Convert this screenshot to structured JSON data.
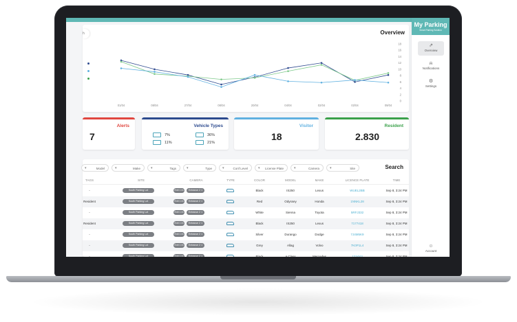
{
  "sidebar": {
    "logo": "My Parking",
    "logo_sub": "Smart Parking Solution",
    "items": [
      {
        "label": "Overview",
        "icon": "chart-icon"
      },
      {
        "label": "Notifications",
        "icon": "bell-icon"
      },
      {
        "label": "Settings",
        "icon": "gear-icon"
      }
    ],
    "account": "Account"
  },
  "overview": {
    "title": "Overview",
    "search_text": "h",
    "chart_data": {
      "type": "line",
      "categories": [
        "01/04",
        "08/04",
        "27/04",
        "08/04",
        "20/04",
        "04/04",
        "02/04",
        "02/04",
        "09/04"
      ],
      "ylim": [
        0,
        18
      ],
      "yticks": [
        18,
        16,
        14,
        12,
        10,
        8,
        6,
        4,
        2,
        0
      ],
      "series": [
        {
          "color": "#2e4a8f",
          "values": [
            12.8,
            10.0,
            8.2,
            5.2,
            7.5,
            10.4,
            12.0,
            6.0,
            8.2
          ]
        },
        {
          "color": "#7dc98a",
          "values": [
            12.4,
            8.5,
            7.8,
            6.8,
            7.3,
            9.4,
            11.4,
            6.5,
            8.8
          ]
        },
        {
          "color": "#5fb0e0",
          "values": [
            10.3,
            9.2,
            7.6,
            4.4,
            8.2,
            6.2,
            5.8,
            6.6,
            5.8
          ]
        }
      ],
      "grid": false,
      "legend": "left"
    }
  },
  "stats": {
    "alerts": {
      "label": "Alerts",
      "value": "7",
      "color": "#e0463f"
    },
    "vehicle_types": {
      "label": "Vehicle Types",
      "color": "#2c4a8e",
      "items": [
        "7%",
        "36%",
        "11%",
        "21%"
      ]
    },
    "visitor": {
      "label": "Visitor",
      "value": "18",
      "color": "#5fb0e0"
    },
    "resident": {
      "label": "Resident",
      "value": "2.830",
      "color": "#3aa04a"
    }
  },
  "filters": [
    "Model",
    "Make",
    "Tags",
    "Type",
    "Conf Level",
    "License Plate",
    "Camera",
    "Site"
  ],
  "search_label": "Search",
  "table": {
    "headers": [
      "TAGS",
      "SITE",
      "CAMERA",
      "TYPE",
      "COLOR",
      "MODEL",
      "MAKE",
      "LICENCE PLATE",
      "TIME"
    ],
    "rows": [
      {
        "tag": "-",
        "site": "South Parking Lot",
        "cam1": "Exit 1 In",
        "cam2": "Entrance 2 1",
        "color": "Black",
        "model": "IS250",
        "make": "Lexus",
        "plate": "WUEL2BB",
        "time": "Sep 8, 3:24 PM"
      },
      {
        "tag": "Resident",
        "site": "South Parking Lot",
        "cam1": "Exit 1 In",
        "cam2": "Entrance 2 1",
        "color": "Red",
        "model": "Odyssey",
        "make": "Honda",
        "plate": "1NNKL28",
        "time": "Sep 8, 3:24 PM"
      },
      {
        "tag": "-",
        "site": "South Parking Lot",
        "cam1": "Exit 1 In",
        "cam2": "Entrance 2 1",
        "color": "White",
        "model": "Sienna",
        "make": "Toyota",
        "plate": "5RFJ332",
        "time": "Sep 8, 3:24 PM"
      },
      {
        "tag": "Resident",
        "site": "South Parking Lot",
        "cam1": "Exit 1 In",
        "cam2": "Entrance 2 1",
        "color": "Black",
        "model": "IS250",
        "make": "Lexus",
        "plate": "7177418",
        "time": "Sep 8, 3:24 PM"
      },
      {
        "tag": "-",
        "site": "South Parking Lot",
        "cam1": "Exit 1 In",
        "cam2": "Entrance 2 1",
        "color": "Silver",
        "model": "Durango",
        "make": "Dodge",
        "plate": "7J4M5K9",
        "time": "Sep 8, 3:24 PM"
      },
      {
        "tag": "-",
        "site": "South Parking Lot",
        "cam1": "Exit 1 In",
        "cam2": "Entrance 2 1",
        "color": "Grey",
        "model": "Allag",
        "make": "Volvo",
        "plate": "7K0P1L4",
        "time": "Sep 8, 3:24 PM"
      },
      {
        "tag": "-",
        "site": "South Parking Lot",
        "cam1": "Exit 1 In",
        "cam2": "Entrance 2 1",
        "color": "Black",
        "model": "A Class",
        "make": "Mercedes",
        "plate": "1234X3",
        "time": "Sep 8, 3:24 PM"
      }
    ]
  }
}
